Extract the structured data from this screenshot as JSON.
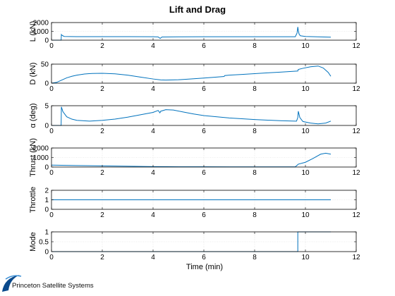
{
  "figure": {
    "title": "Lift and Drag",
    "xlabel": "Time (min)",
    "footer": "Princeton Satellite Systems",
    "line_color": "#0072BD"
  },
  "chart_data": [
    {
      "type": "line",
      "ylabel": "L (kN)",
      "xlim": [
        0,
        12
      ],
      "ylim": [
        0,
        2000
      ],
      "yticks": [
        0,
        1000,
        2000
      ],
      "xticks": [
        0,
        2,
        4,
        6,
        8,
        10,
        12
      ],
      "grid": true,
      "series": [
        {
          "x": [
            0,
            0.38,
            0.39,
            0.41,
            0.5,
            1,
            2,
            3,
            4,
            4.2,
            4.28,
            4.35,
            5,
            6,
            7,
            8,
            9,
            9.6,
            9.67,
            9.7,
            9.72,
            9.75,
            9.8,
            10,
            10.5,
            11
          ],
          "y": [
            0,
            0,
            640,
            560,
            420,
            400,
            400,
            400,
            390,
            370,
            200,
            360,
            380,
            390,
            390,
            390,
            390,
            390,
            800,
            1500,
            1100,
            700,
            500,
            420,
            380,
            340
          ]
        }
      ]
    },
    {
      "type": "line",
      "ylabel": "D (kN)",
      "xlim": [
        0,
        12
      ],
      "ylim": [
        0,
        50
      ],
      "yticks": [
        0,
        50
      ],
      "xticks": [
        0,
        2,
        4,
        6,
        8,
        10,
        12
      ],
      "grid": true,
      "series": [
        {
          "x": [
            0,
            0.2,
            0.4,
            0.6,
            0.8,
            1,
            1.3,
            1.6,
            2,
            2.5,
            3,
            3.5,
            4,
            4.3,
            4.5,
            5,
            5.5,
            6,
            6.5,
            6.8,
            6.82,
            7,
            7.5,
            8,
            8.5,
            9,
            9.5,
            9.7,
            9.72,
            9.9,
            10.2,
            10.5,
            10.7,
            10.9,
            11
          ],
          "y": [
            0,
            2,
            8,
            14,
            18,
            21,
            24,
            25.5,
            26,
            24.5,
            21,
            16,
            11,
            8.5,
            8,
            9,
            11,
            13.5,
            16,
            17.5,
            20,
            21,
            23,
            25,
            27,
            29,
            31,
            32,
            36,
            39,
            43,
            45,
            40,
            28,
            18
          ]
        }
      ]
    },
    {
      "type": "line",
      "ylabel": "α (deg)",
      "xlim": [
        0,
        12
      ],
      "ylim": [
        0,
        5
      ],
      "yticks": [
        0,
        5
      ],
      "xticks": [
        0,
        2,
        4,
        6,
        8,
        10,
        12
      ],
      "grid": true,
      "series": [
        {
          "x": [
            0,
            0.38,
            0.39,
            0.45,
            0.6,
            0.8,
            1,
            1.5,
            2,
            2.5,
            3,
            3.5,
            4,
            4.2,
            4.27,
            4.3,
            4.5,
            4.8,
            5.2,
            5.6,
            6,
            7,
            8,
            9,
            9.6,
            9.65,
            9.7,
            9.72,
            9.78,
            9.9,
            10.2,
            10.5,
            10.8,
            11
          ],
          "y": [
            0,
            0,
            4.7,
            3.5,
            2.2,
            1.6,
            1.3,
            1.1,
            1.3,
            1.6,
            2.1,
            2.7,
            3.3,
            3.8,
            3.2,
            3.6,
            4.0,
            3.9,
            3.4,
            2.9,
            2.5,
            1.9,
            1.5,
            1.2,
            1.1,
            1.1,
            2.0,
            3.6,
            2.0,
            1.0,
            0.6,
            0.4,
            0.6,
            1.1
          ]
        }
      ]
    },
    {
      "type": "line",
      "ylabel": "Thrust (kN)",
      "xlim": [
        0,
        12
      ],
      "ylim": [
        0,
        2000
      ],
      "yticks": [
        0,
        1000,
        2000
      ],
      "xticks": [
        0,
        2,
        4,
        6,
        8,
        10,
        12
      ],
      "grid": true,
      "series": [
        {
          "x": [
            0,
            1,
            2,
            3,
            4,
            4.5,
            5,
            6,
            7,
            8,
            9,
            9.6,
            9.7,
            9.72,
            10,
            10.3,
            10.6,
            10.8,
            11
          ],
          "y": [
            200,
            160,
            120,
            80,
            50,
            40,
            30,
            25,
            20,
            18,
            15,
            15,
            250,
            300,
            500,
            900,
            1350,
            1450,
            1350
          ]
        }
      ]
    },
    {
      "type": "line",
      "ylabel": "Throttle",
      "xlim": [
        0,
        12
      ],
      "ylim": [
        0,
        2
      ],
      "yticks": [
        0,
        1,
        2
      ],
      "xticks": [
        0,
        2,
        4,
        6,
        8,
        10,
        12
      ],
      "grid": true,
      "series": [
        {
          "x": [
            0,
            11
          ],
          "y": [
            1,
            1
          ]
        }
      ]
    },
    {
      "type": "line",
      "ylabel": "Mode",
      "xlim": [
        0,
        12
      ],
      "ylim": [
        0,
        1
      ],
      "yticks": [
        0,
        0.5,
        1
      ],
      "xticks": [
        0,
        2,
        4,
        6,
        8,
        10,
        12
      ],
      "grid": true,
      "series": [
        {
          "x": [
            0,
            9.7,
            9.7,
            11
          ],
          "y": [
            0,
            0,
            1,
            1
          ]
        }
      ]
    }
  ]
}
